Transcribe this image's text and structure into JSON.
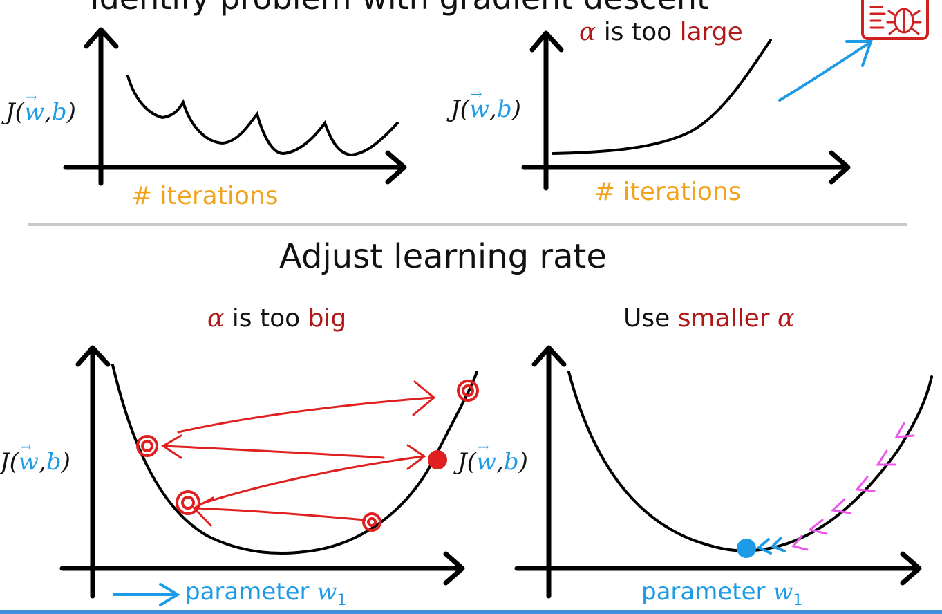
{
  "header_fragment": "Identify problem with gradient descent",
  "top_left": {
    "ylabel_j": "J(",
    "ylabel_w": "w",
    "ylabel_comma": ",",
    "ylabel_b": "b",
    "ylabel_close": ")",
    "xlabel": "# iterations"
  },
  "top_right": {
    "annotation_alpha": "α",
    "annotation_mid": " is too ",
    "annotation_word": "large",
    "ylabel_j": "J(",
    "ylabel_w": "w",
    "ylabel_comma": ",",
    "ylabel_b": "b",
    "ylabel_close": ")",
    "xlabel": "# iterations"
  },
  "section_title": "Adjust learning rate",
  "bottom_left": {
    "title_alpha": "α",
    "title_mid": " is too ",
    "title_word": "big",
    "ylabel_j": "J(",
    "ylabel_w": "w",
    "ylabel_comma": ",",
    "ylabel_b": "b",
    "ylabel_close": ")",
    "xlabel": "parameter ",
    "xlabel_var": "w",
    "xlabel_sub": "1"
  },
  "bottom_right": {
    "title_use": "Use ",
    "title_word": "smaller ",
    "title_alpha": "α",
    "ylabel_j": "J(",
    "ylabel_w": "w",
    "ylabel_comma": ",",
    "ylabel_b": "b",
    "ylabel_close": ")",
    "xlabel": "parameter ",
    "xlabel_var": "w",
    "xlabel_sub": "1"
  },
  "icons": {
    "corner": "bug-icon"
  },
  "colors": {
    "ink": "#111111",
    "accent_blue": "#1e9be6",
    "accent_orange": "#f2a21b",
    "accent_red": "#b01818",
    "marker_red": "#e02020",
    "arrow_magenta": "#ee55ee",
    "divider": "#c8c8c8",
    "bottom_bar": "#3f8fdc"
  }
}
